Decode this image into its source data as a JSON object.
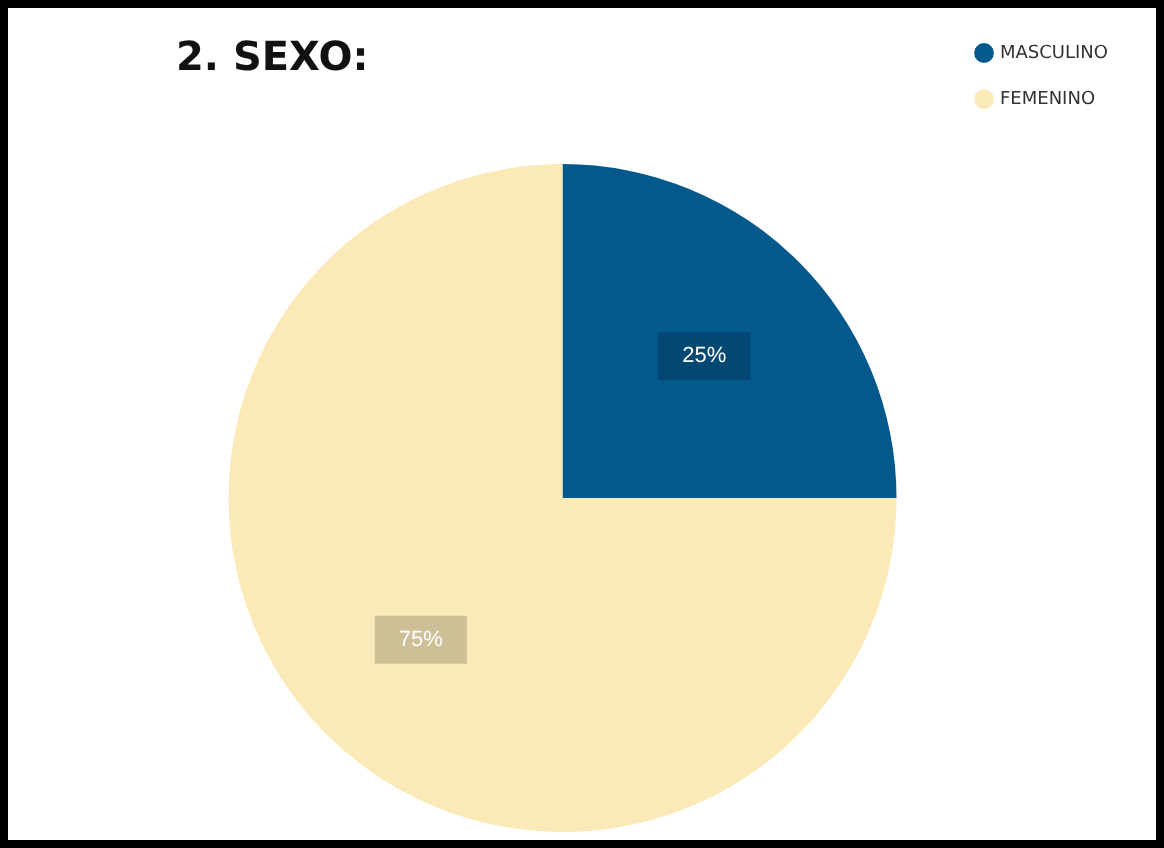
{
  "chart_data": {
    "type": "pie",
    "title": "2. SEXO:",
    "categories": [
      "MASCULINO",
      "FEMENINO"
    ],
    "values": [
      25,
      75
    ],
    "colors": [
      "#03588c",
      "#fbe9b7"
    ],
    "value_labels": [
      "25%",
      "75%"
    ],
    "legend": "top right"
  }
}
